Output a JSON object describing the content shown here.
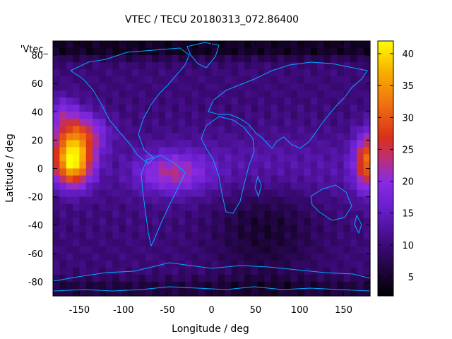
{
  "chart_data": {
    "type": "heatmap",
    "title": "VTEC / TECU 20180313_072.86400",
    "xlabel": "Longitude / deg",
    "ylabel": "Latitude / deg",
    "key_label": "'Vtec_",
    "xlim": [
      -180,
      180
    ],
    "ylim": [
      -90,
      90
    ],
    "x_ticks": [
      -150,
      -100,
      -50,
      0,
      50,
      100,
      150
    ],
    "y_ticks": [
      -80,
      -60,
      -40,
      -20,
      0,
      20,
      40,
      60,
      80
    ],
    "colorbar": {
      "range": [
        2,
        42
      ],
      "ticks": [
        5,
        10,
        15,
        20,
        25,
        30,
        35,
        40
      ]
    },
    "grid": false,
    "features": [
      {
        "name": "crest-west",
        "lon": -158,
        "lat": 5,
        "vtec": 41
      },
      {
        "name": "crest-east",
        "lon": 178,
        "lat": 5,
        "vtec": 30
      },
      {
        "name": "americas-band",
        "lon": -45,
        "lat": -3,
        "vtec": 20
      },
      {
        "name": "night-minimum",
        "lon": 60,
        "lat": -40,
        "vtec": 5
      },
      {
        "name": "north-pole-min",
        "lon": 20,
        "lat": 85,
        "vtec": 3
      },
      {
        "name": "south-pole-min",
        "lon": 10,
        "lat": -85,
        "vtec": 5
      }
    ]
  }
}
